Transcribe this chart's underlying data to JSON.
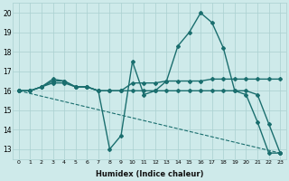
{
  "xlabel": "Humidex (Indice chaleur)",
  "ylabel": "",
  "bg_color": "#ceeaea",
  "grid_color": "#aad0d0",
  "line_color": "#1a6e6e",
  "xlim": [
    -0.5,
    23.5
  ],
  "ylim": [
    12.5,
    20.5
  ],
  "yticks": [
    13,
    14,
    15,
    16,
    17,
    18,
    19,
    20
  ],
  "xticks": [
    0,
    1,
    2,
    3,
    4,
    5,
    6,
    7,
    8,
    9,
    10,
    11,
    12,
    13,
    14,
    15,
    16,
    17,
    18,
    19,
    20,
    21,
    22,
    23
  ],
  "lines": [
    {
      "x": [
        0,
        1,
        2,
        3,
        4,
        5,
        6,
        7,
        8,
        9,
        10,
        11,
        12,
        13,
        14,
        15,
        16,
        17,
        18,
        19,
        20,
        21,
        22,
        23
      ],
      "y": [
        16.0,
        16.0,
        16.2,
        16.6,
        16.5,
        16.2,
        16.2,
        16.0,
        13.0,
        13.7,
        17.5,
        15.8,
        16.0,
        16.5,
        18.3,
        19.0,
        20.0,
        19.5,
        18.2,
        16.0,
        16.0,
        15.8,
        14.3,
        12.8
      ]
    },
    {
      "x": [
        0,
        1,
        2,
        3,
        4,
        5,
        6,
        7,
        8,
        9,
        10,
        11,
        12,
        13,
        14,
        15,
        16,
        17,
        18,
        19,
        20,
        21,
        22,
        23
      ],
      "y": [
        16.0,
        16.0,
        16.2,
        16.5,
        16.5,
        16.2,
        16.2,
        16.0,
        16.0,
        16.0,
        16.4,
        16.4,
        16.4,
        16.5,
        16.5,
        16.5,
        16.5,
        16.6,
        16.6,
        16.6,
        16.6,
        16.6,
        16.6,
        16.6
      ]
    },
    {
      "x": [
        0,
        1,
        2,
        3,
        4,
        5,
        6,
        7,
        8,
        9,
        10,
        11,
        12,
        13,
        14,
        15,
        16,
        17,
        18,
        19,
        20,
        21,
        22,
        23
      ],
      "y": [
        16.0,
        16.0,
        16.2,
        16.4,
        16.4,
        16.2,
        16.2,
        16.0,
        16.0,
        16.0,
        16.0,
        16.0,
        16.0,
        16.0,
        16.0,
        16.0,
        16.0,
        16.0,
        16.0,
        16.0,
        15.8,
        14.4,
        12.8,
        12.8
      ]
    },
    {
      "x": [
        0,
        23
      ],
      "y": [
        16.0,
        12.8
      ]
    }
  ]
}
